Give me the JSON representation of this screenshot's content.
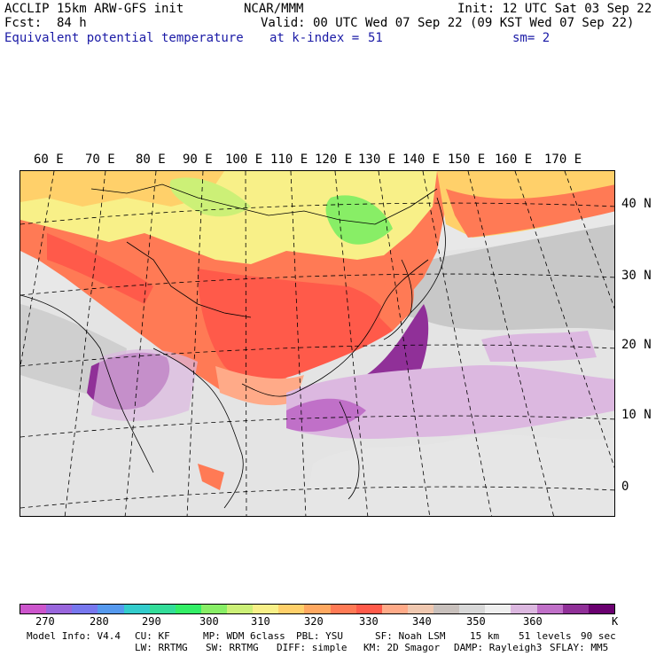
{
  "header": {
    "model": "ACCLIP 15km ARW-GFS init",
    "org": "NCAR/MMM",
    "init": "Init: 12 UTC Sat 03 Sep 22",
    "fcst_label": "Fcst:",
    "fcst_value": "84 h",
    "valid": "Valid: 00 UTC Wed 07 Sep 22 (09 KST Wed 07 Sep 22)",
    "field": "Equivalent potential temperature",
    "level_label": "at k-index =",
    "level_value": "51",
    "smoothing": "sm= 2"
  },
  "map": {
    "lon_labels": [
      "60 E",
      "70 E",
      "80 E",
      "90 E",
      "100 E",
      "110 E",
      "120 E",
      "130 E",
      "140 E",
      "150 E",
      "160 E",
      "170 E"
    ],
    "lat_labels": [
      "40 N",
      "30 N",
      "20 N",
      "10 N",
      "0"
    ]
  },
  "legend": {
    "colors": [
      "#cc55cc",
      "#9966dd",
      "#7777ee",
      "#5599ee",
      "#33cccc",
      "#33dd99",
      "#33ee66",
      "#88ee66",
      "#ccf077",
      "#f8f088",
      "#ffd06a",
      "#ffa860",
      "#ff7a55",
      "#ff5a4a",
      "#ffaa88",
      "#f0c8b0",
      "#c8c0bc",
      "#d8d8d8",
      "#efefef",
      "#dcb8e0",
      "#c070c8",
      "#903098",
      "#6a0070"
    ],
    "ticks": [
      "270",
      "280",
      "290",
      "300",
      "310",
      "320",
      "330",
      "340",
      "350",
      "360"
    ],
    "unit": "K"
  },
  "footer": {
    "model_info": "Model Info: V4.4",
    "cu": "CU: KF",
    "mp": "MP: WDM 6class",
    "pbl": "PBL: YSU",
    "sf": "SF: Noah LSM",
    "res": "15 km",
    "levels": "51 levels",
    "dt": "90 sec",
    "lw": "LW: RRTMG",
    "sw": "SW: RRTMG",
    "diff": "DIFF: simple",
    "km": "KM: 2D Smagor",
    "damp": "DAMP: Rayleigh3",
    "sflay": "SFLAY: MM5"
  }
}
